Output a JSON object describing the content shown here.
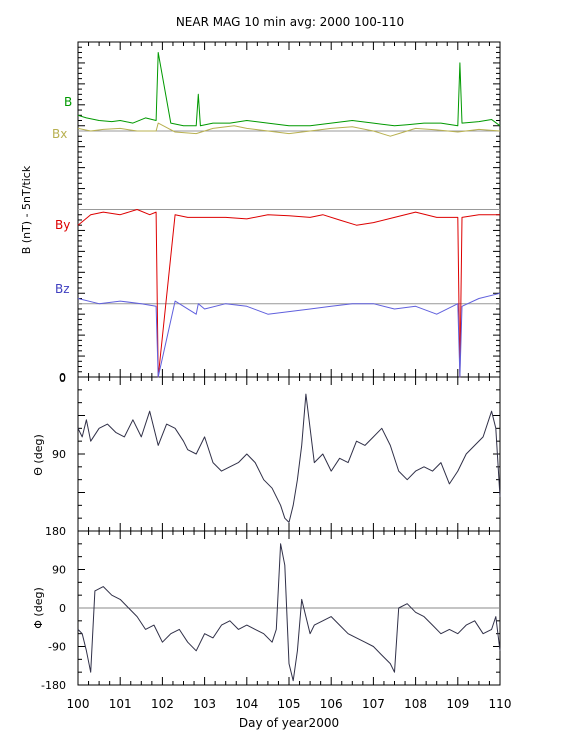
{
  "chart_data": [
    {
      "type": "line",
      "title": "NEAR MAG 10 min avg: 2000 100-110",
      "ylabel": "B  (nT) - 5nT/tick",
      "zero_label": "0",
      "series": [
        {
          "name": "B",
          "color": "#009900",
          "x": [
            100,
            100.2,
            100.5,
            100.8,
            101.0,
            101.3,
            101.6,
            101.85,
            101.9,
            102.2,
            102.5,
            102.8,
            102.85,
            102.9,
            103.2,
            103.6,
            104.0,
            104.5,
            105.0,
            105.5,
            106.0,
            106.5,
            107.0,
            107.5,
            107.8,
            108.2,
            108.6,
            109.0,
            109.05,
            109.1,
            109.5,
            109.8,
            110
          ],
          "y": [
            18,
            17.5,
            17,
            16.8,
            17,
            16.5,
            17.5,
            17,
            30,
            16.5,
            16,
            16,
            22,
            16,
            16.5,
            16.5,
            17,
            16.5,
            16,
            16,
            16.5,
            17,
            16.5,
            16,
            16.2,
            16.5,
            16.5,
            16,
            28,
            16.5,
            16.8,
            17.2,
            16
          ]
        },
        {
          "name": "Bx",
          "color": "#b8b050",
          "x": [
            100,
            100.3,
            100.6,
            101.0,
            101.4,
            101.85,
            101.9,
            102.3,
            102.8,
            103.2,
            103.7,
            104.0,
            104.5,
            105.0,
            105.5,
            106.0,
            106.5,
            107.0,
            107.4,
            107.6,
            108.0,
            108.5,
            109.0,
            109.5,
            110
          ],
          "y": [
            15.5,
            15,
            15.3,
            15.5,
            15,
            15,
            16.5,
            14.8,
            14.5,
            15.5,
            16,
            15.5,
            15,
            14.5,
            15,
            15.5,
            15.8,
            15,
            14,
            14.5,
            15.5,
            15.2,
            14.8,
            15.3,
            15
          ]
        },
        {
          "name": "By",
          "color": "#dd0000",
          "x": [
            100,
            100.3,
            100.6,
            101.0,
            101.4,
            101.7,
            101.85,
            101.9,
            102.3,
            102.6,
            103.0,
            103.5,
            104.0,
            104.5,
            105.0,
            105.5,
            105.8,
            106.2,
            106.6,
            107.0,
            107.5,
            108.0,
            108.5,
            109.0,
            109.05,
            109.1,
            109.5,
            110
          ],
          "y": [
            -3,
            -1,
            -0.5,
            -1,
            0,
            -1,
            -0.5,
            -32,
            -1,
            -1.5,
            -1.5,
            -1.5,
            -1.8,
            -1,
            -1.2,
            -1.5,
            -1,
            -2,
            -3,
            -2.5,
            -1.5,
            -0.5,
            -1.5,
            -1.5,
            -32,
            -1.5,
            -1,
            -1
          ]
        },
        {
          "name": "Bz",
          "color": "#6060dd",
          "x": [
            100,
            100.5,
            101.0,
            101.5,
            101.85,
            101.9,
            102.3,
            102.8,
            102.85,
            103.0,
            103.5,
            104.0,
            104.5,
            105.0,
            105.5,
            106.0,
            106.5,
            107.0,
            107.5,
            108.0,
            108.5,
            109.0,
            109.05,
            109.1,
            109.5,
            110
          ],
          "y": [
            -17,
            -18,
            -17.5,
            -18,
            -18.5,
            -32,
            -17.5,
            -20,
            -18,
            -19,
            -18,
            -18.5,
            -20,
            -19.5,
            -19,
            -18.5,
            -18,
            -18,
            -19,
            -18.5,
            -20,
            -18,
            -32,
            -18.5,
            -17,
            -16
          ]
        }
      ],
      "baselines": [
        {
          "name": "B",
          "y": 15
        },
        {
          "name": "By",
          "y": 0
        },
        {
          "name": "Bz",
          "y": -18
        }
      ],
      "ylim": [
        -32,
        32
      ]
    },
    {
      "type": "line",
      "ylabel": "Θ (deg)",
      "y_tick_labels": [
        "0",
        "90"
      ],
      "y_tick_values": [
        0,
        90
      ],
      "ylim": [
        180,
        0
      ],
      "series": [
        {
          "name": "Theta",
          "color": "#303048",
          "x": [
            100,
            100.1,
            100.2,
            100.3,
            100.5,
            100.7,
            100.9,
            101.1,
            101.3,
            101.5,
            101.7,
            101.9,
            102.1,
            102.3,
            102.5,
            102.6,
            102.8,
            103.0,
            103.2,
            103.4,
            103.6,
            103.8,
            104.0,
            104.2,
            104.4,
            104.6,
            104.8,
            104.9,
            105.0,
            105.1,
            105.2,
            105.3,
            105.4,
            105.5,
            105.6,
            105.8,
            106.0,
            106.2,
            106.4,
            106.6,
            106.8,
            107.0,
            107.2,
            107.4,
            107.6,
            107.8,
            108.0,
            108.2,
            108.4,
            108.6,
            108.8,
            109.0,
            109.2,
            109.4,
            109.6,
            109.8,
            109.9,
            110
          ],
          "y": [
            60,
            70,
            50,
            75,
            60,
            55,
            65,
            70,
            50,
            70,
            40,
            80,
            55,
            60,
            75,
            85,
            90,
            70,
            100,
            110,
            105,
            100,
            90,
            100,
            120,
            130,
            150,
            165,
            170,
            150,
            120,
            80,
            20,
            60,
            100,
            90,
            110,
            95,
            100,
            75,
            80,
            70,
            60,
            80,
            110,
            120,
            110,
            105,
            110,
            100,
            125,
            110,
            90,
            80,
            70,
            40,
            60,
            140
          ]
        }
      ]
    },
    {
      "type": "line",
      "ylabel": "Φ (deg)",
      "xlabel": "Day of year2000",
      "y_tick_labels": [
        "180",
        "90",
        "0",
        "-90",
        "-180"
      ],
      "y_tick_values": [
        180,
        90,
        0,
        -90,
        -180
      ],
      "ylim": [
        -180,
        180
      ],
      "x_tick_labels": [
        "100",
        "101",
        "102",
        "103",
        "104",
        "105",
        "106",
        "107",
        "108",
        "109",
        "110"
      ],
      "x_tick_values": [
        100,
        101,
        102,
        103,
        104,
        105,
        106,
        107,
        108,
        109,
        110
      ],
      "xlim": [
        100,
        110
      ],
      "zero_line": true,
      "series": [
        {
          "name": "Phi",
          "color": "#303048",
          "x": [
            100,
            100.1,
            100.2,
            100.3,
            100.4,
            100.6,
            100.8,
            101.0,
            101.2,
            101.4,
            101.6,
            101.8,
            102.0,
            102.2,
            102.4,
            102.6,
            102.8,
            103.0,
            103.2,
            103.4,
            103.6,
            103.8,
            104.0,
            104.2,
            104.4,
            104.6,
            104.7,
            104.8,
            104.9,
            105.0,
            105.1,
            105.2,
            105.3,
            105.4,
            105.5,
            105.6,
            105.8,
            106.0,
            106.2,
            106.4,
            106.6,
            106.8,
            107.0,
            107.2,
            107.4,
            107.5,
            107.6,
            107.8,
            108.0,
            108.2,
            108.4,
            108.6,
            108.8,
            109.0,
            109.2,
            109.4,
            109.6,
            109.8,
            109.9,
            110
          ],
          "y": [
            -50,
            -60,
            -100,
            -150,
            40,
            50,
            30,
            20,
            0,
            -20,
            -50,
            -40,
            -80,
            -60,
            -50,
            -80,
            -100,
            -60,
            -70,
            -40,
            -30,
            -50,
            -40,
            -50,
            -60,
            -80,
            -50,
            150,
            100,
            -130,
            -170,
            -100,
            20,
            -20,
            -60,
            -40,
            -30,
            -20,
            -40,
            -60,
            -70,
            -80,
            -90,
            -110,
            -130,
            -150,
            0,
            10,
            -10,
            -20,
            -40,
            -60,
            -50,
            -60,
            -40,
            -30,
            -60,
            -50,
            -20,
            -100
          ]
        }
      ]
    }
  ]
}
